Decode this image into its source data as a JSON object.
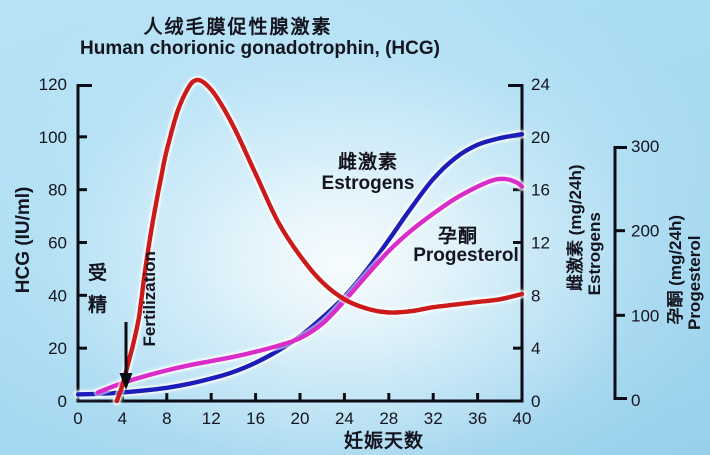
{
  "labels": {
    "title_zh": "人绒毛膜促性腺激素",
    "title_en": "Human chorionic gonadotrophin,  (HCG)",
    "y_left": "HCG (IU/ml)",
    "y_right_zh": "雌激素 (mg/24h)",
    "y_right_en": "Estrogens",
    "y_far_right_zh": "孕酮 (mg/24h)",
    "y_far_right_en": "Progesterol",
    "x_axis": "妊娠天数",
    "estrogens_zh": "雌激素",
    "estrogens_en": "Estrogens",
    "progesterol_zh": "孕酮",
    "progesterol_en": "Progesterol",
    "fertilization_zh": "受精",
    "fertilization_en": "Fertilization"
  },
  "colors": {
    "hcg": "#cc1a1a",
    "estrogens": "#1c1cb8",
    "progesterol": "#d92cc8",
    "axis": "#0c0c16",
    "text": "#15151f",
    "halo": "rgba(255,255,255,0.5)"
  },
  "chart_data": {
    "type": "line",
    "title": "人绒毛膜促性腺激素 Human chorionic gonadotrophin, (HCG)",
    "xlabel": "妊娠天数",
    "x_range": [
      0,
      40
    ],
    "x_ticks": [
      0,
      4,
      8,
      12,
      16,
      20,
      24,
      28,
      32,
      36,
      40
    ],
    "axes": {
      "left": {
        "label": "HCG (IU/ml)",
        "range": [
          0,
          120
        ],
        "ticks": [
          0,
          20,
          40,
          60,
          80,
          100,
          120
        ]
      },
      "right": {
        "label": "雌激素 (mg/24h) Estrogens",
        "range": [
          0,
          24
        ],
        "ticks": [
          0,
          4,
          8,
          12,
          16,
          20,
          24
        ]
      },
      "far_right": {
        "label": "孕酮 (mg/24h) Progesterol",
        "range": [
          0,
          300
        ],
        "ticks": [
          0,
          100,
          200,
          300
        ]
      }
    },
    "annotations": [
      {
        "text": "受精 Fertilization",
        "x_day": 4,
        "type": "arrow-down"
      }
    ],
    "series": [
      {
        "name": "HCG",
        "name_zh": "人绒毛膜促性腺激素",
        "axis": "left",
        "unit": "IU/ml",
        "color": "#cc1a1a",
        "points": [
          [
            3.5,
            0
          ],
          [
            4,
            6
          ],
          [
            4.5,
            14
          ],
          [
            5,
            22
          ],
          [
            5.5,
            32
          ],
          [
            6,
            48
          ],
          [
            6.5,
            62
          ],
          [
            7,
            74
          ],
          [
            7.5,
            85
          ],
          [
            8,
            95
          ],
          [
            9,
            110
          ],
          [
            10,
            119
          ],
          [
            10.7,
            121.5
          ],
          [
            11.5,
            120
          ],
          [
            12.5,
            115
          ],
          [
            14,
            104
          ],
          [
            16,
            86
          ],
          [
            18,
            68
          ],
          [
            20,
            55
          ],
          [
            22,
            45
          ],
          [
            24,
            38.5
          ],
          [
            26,
            35
          ],
          [
            28,
            33.5
          ],
          [
            30,
            34
          ],
          [
            32,
            35.5
          ],
          [
            34,
            36.5
          ],
          [
            36,
            37.5
          ],
          [
            38,
            38.5
          ],
          [
            40,
            40.5
          ]
        ]
      },
      {
        "name": "Estrogens",
        "name_zh": "雌激素",
        "axis": "right",
        "unit": "mg/24h",
        "color": "#1c1cb8",
        "points": [
          [
            0,
            0.5
          ],
          [
            2,
            0.55
          ],
          [
            4,
            0.65
          ],
          [
            6,
            0.8
          ],
          [
            8,
            1.0
          ],
          [
            10,
            1.3
          ],
          [
            12,
            1.7
          ],
          [
            14,
            2.2
          ],
          [
            16,
            2.9
          ],
          [
            18,
            3.8
          ],
          [
            20,
            4.9
          ],
          [
            22,
            6.3
          ],
          [
            24,
            7.9
          ],
          [
            26,
            9.9
          ],
          [
            28,
            12.2
          ],
          [
            30,
            14.6
          ],
          [
            32,
            16.8
          ],
          [
            34,
            18.4
          ],
          [
            36,
            19.4
          ],
          [
            38,
            19.9
          ],
          [
            40,
            20.2
          ]
        ]
      },
      {
        "name": "Progesterol",
        "name_zh": "孕酮",
        "axis": "far_right",
        "unit": "mg/24h",
        "color": "#d92cc8",
        "points": [
          [
            1.8,
            9
          ],
          [
            4,
            20
          ],
          [
            6,
            28
          ],
          [
            8,
            35
          ],
          [
            10,
            41
          ],
          [
            12,
            46
          ],
          [
            14,
            51
          ],
          [
            16,
            57
          ],
          [
            18,
            64
          ],
          [
            20,
            73
          ],
          [
            22,
            90
          ],
          [
            24,
            117
          ],
          [
            26,
            147
          ],
          [
            28,
            176
          ],
          [
            30,
            200
          ],
          [
            32,
            220
          ],
          [
            34,
            238
          ],
          [
            36,
            252
          ],
          [
            37.5,
            260
          ],
          [
            38.5,
            261
          ],
          [
            39.5,
            257
          ],
          [
            40,
            252
          ]
        ]
      }
    ]
  }
}
